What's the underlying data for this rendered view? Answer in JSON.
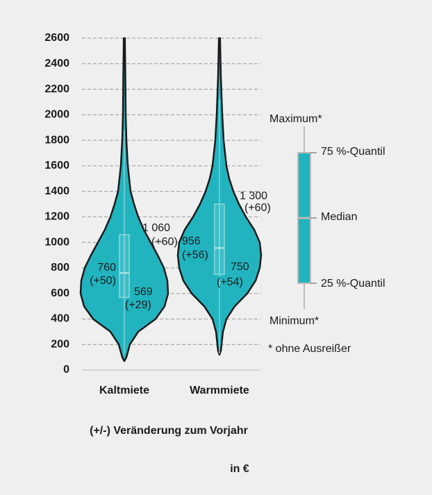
{
  "chart_data": {
    "type": "violin",
    "categories": [
      "Kaltmiete",
      "Warmmiete"
    ],
    "ylim": [
      0,
      2600
    ],
    "yticks": [
      0,
      200,
      400,
      600,
      800,
      1000,
      1200,
      1400,
      1600,
      1800,
      2000,
      2200,
      2400,
      2600
    ],
    "grid": true,
    "color": "#21b4bf",
    "violins": [
      {
        "y": [
          70,
          100,
          200,
          300,
          400,
          500,
          600,
          700,
          800,
          900,
          1000,
          1100,
          1200,
          1300,
          1400,
          1600,
          1800,
          2000,
          2300,
          2600
        ],
        "density": [
          0,
          3,
          8,
          20,
          45,
          58,
          63,
          62,
          57,
          48,
          38,
          28,
          20,
          14,
          9,
          5,
          3,
          2,
          1.5,
          0.8
        ],
        "box": {
          "min": 120,
          "q1": 569,
          "median": 760,
          "q3": 1060,
          "max": 1880
        },
        "value_labels": {
          "q1": "569",
          "median": "760",
          "q3": "1 060"
        },
        "changes": {
          "q1": 29,
          "median": 50,
          "q3": 60
        },
        "change_labels": {
          "q1": "(+29)",
          "median": "(+50)",
          "q3": "(+60)"
        }
      },
      {
        "y": [
          120,
          150,
          300,
          400,
          500,
          600,
          700,
          800,
          900,
          1000,
          1100,
          1200,
          1300,
          1400,
          1500,
          1600,
          1800,
          2000,
          2300,
          2600
        ],
        "density": [
          0,
          2,
          5,
          10,
          22,
          40,
          52,
          58,
          60,
          58,
          50,
          38,
          28,
          20,
          14,
          10,
          6,
          4,
          2,
          0.8
        ],
        "box": {
          "min": 130,
          "q1": 750,
          "median": 956,
          "q3": 1300,
          "max": 2120
        },
        "value_labels": {
          "q1": "750",
          "median": "956",
          "q3": "1 300"
        },
        "changes": {
          "q1": 54,
          "median": 56,
          "q3": 60
        },
        "change_labels": {
          "q1": "(+54)",
          "median": "(+56)",
          "q3": "(+60)"
        }
      }
    ],
    "legend": {
      "maximum": "Maximum*",
      "q3": "75 %-Quantil",
      "median": "Median",
      "q1": "25 %-Quantil",
      "minimum": "Minimum*",
      "note": "* ohne Ausreißer"
    },
    "footnote": "(+/-) Veränderung zum Vorjahr",
    "unit": "in €"
  }
}
